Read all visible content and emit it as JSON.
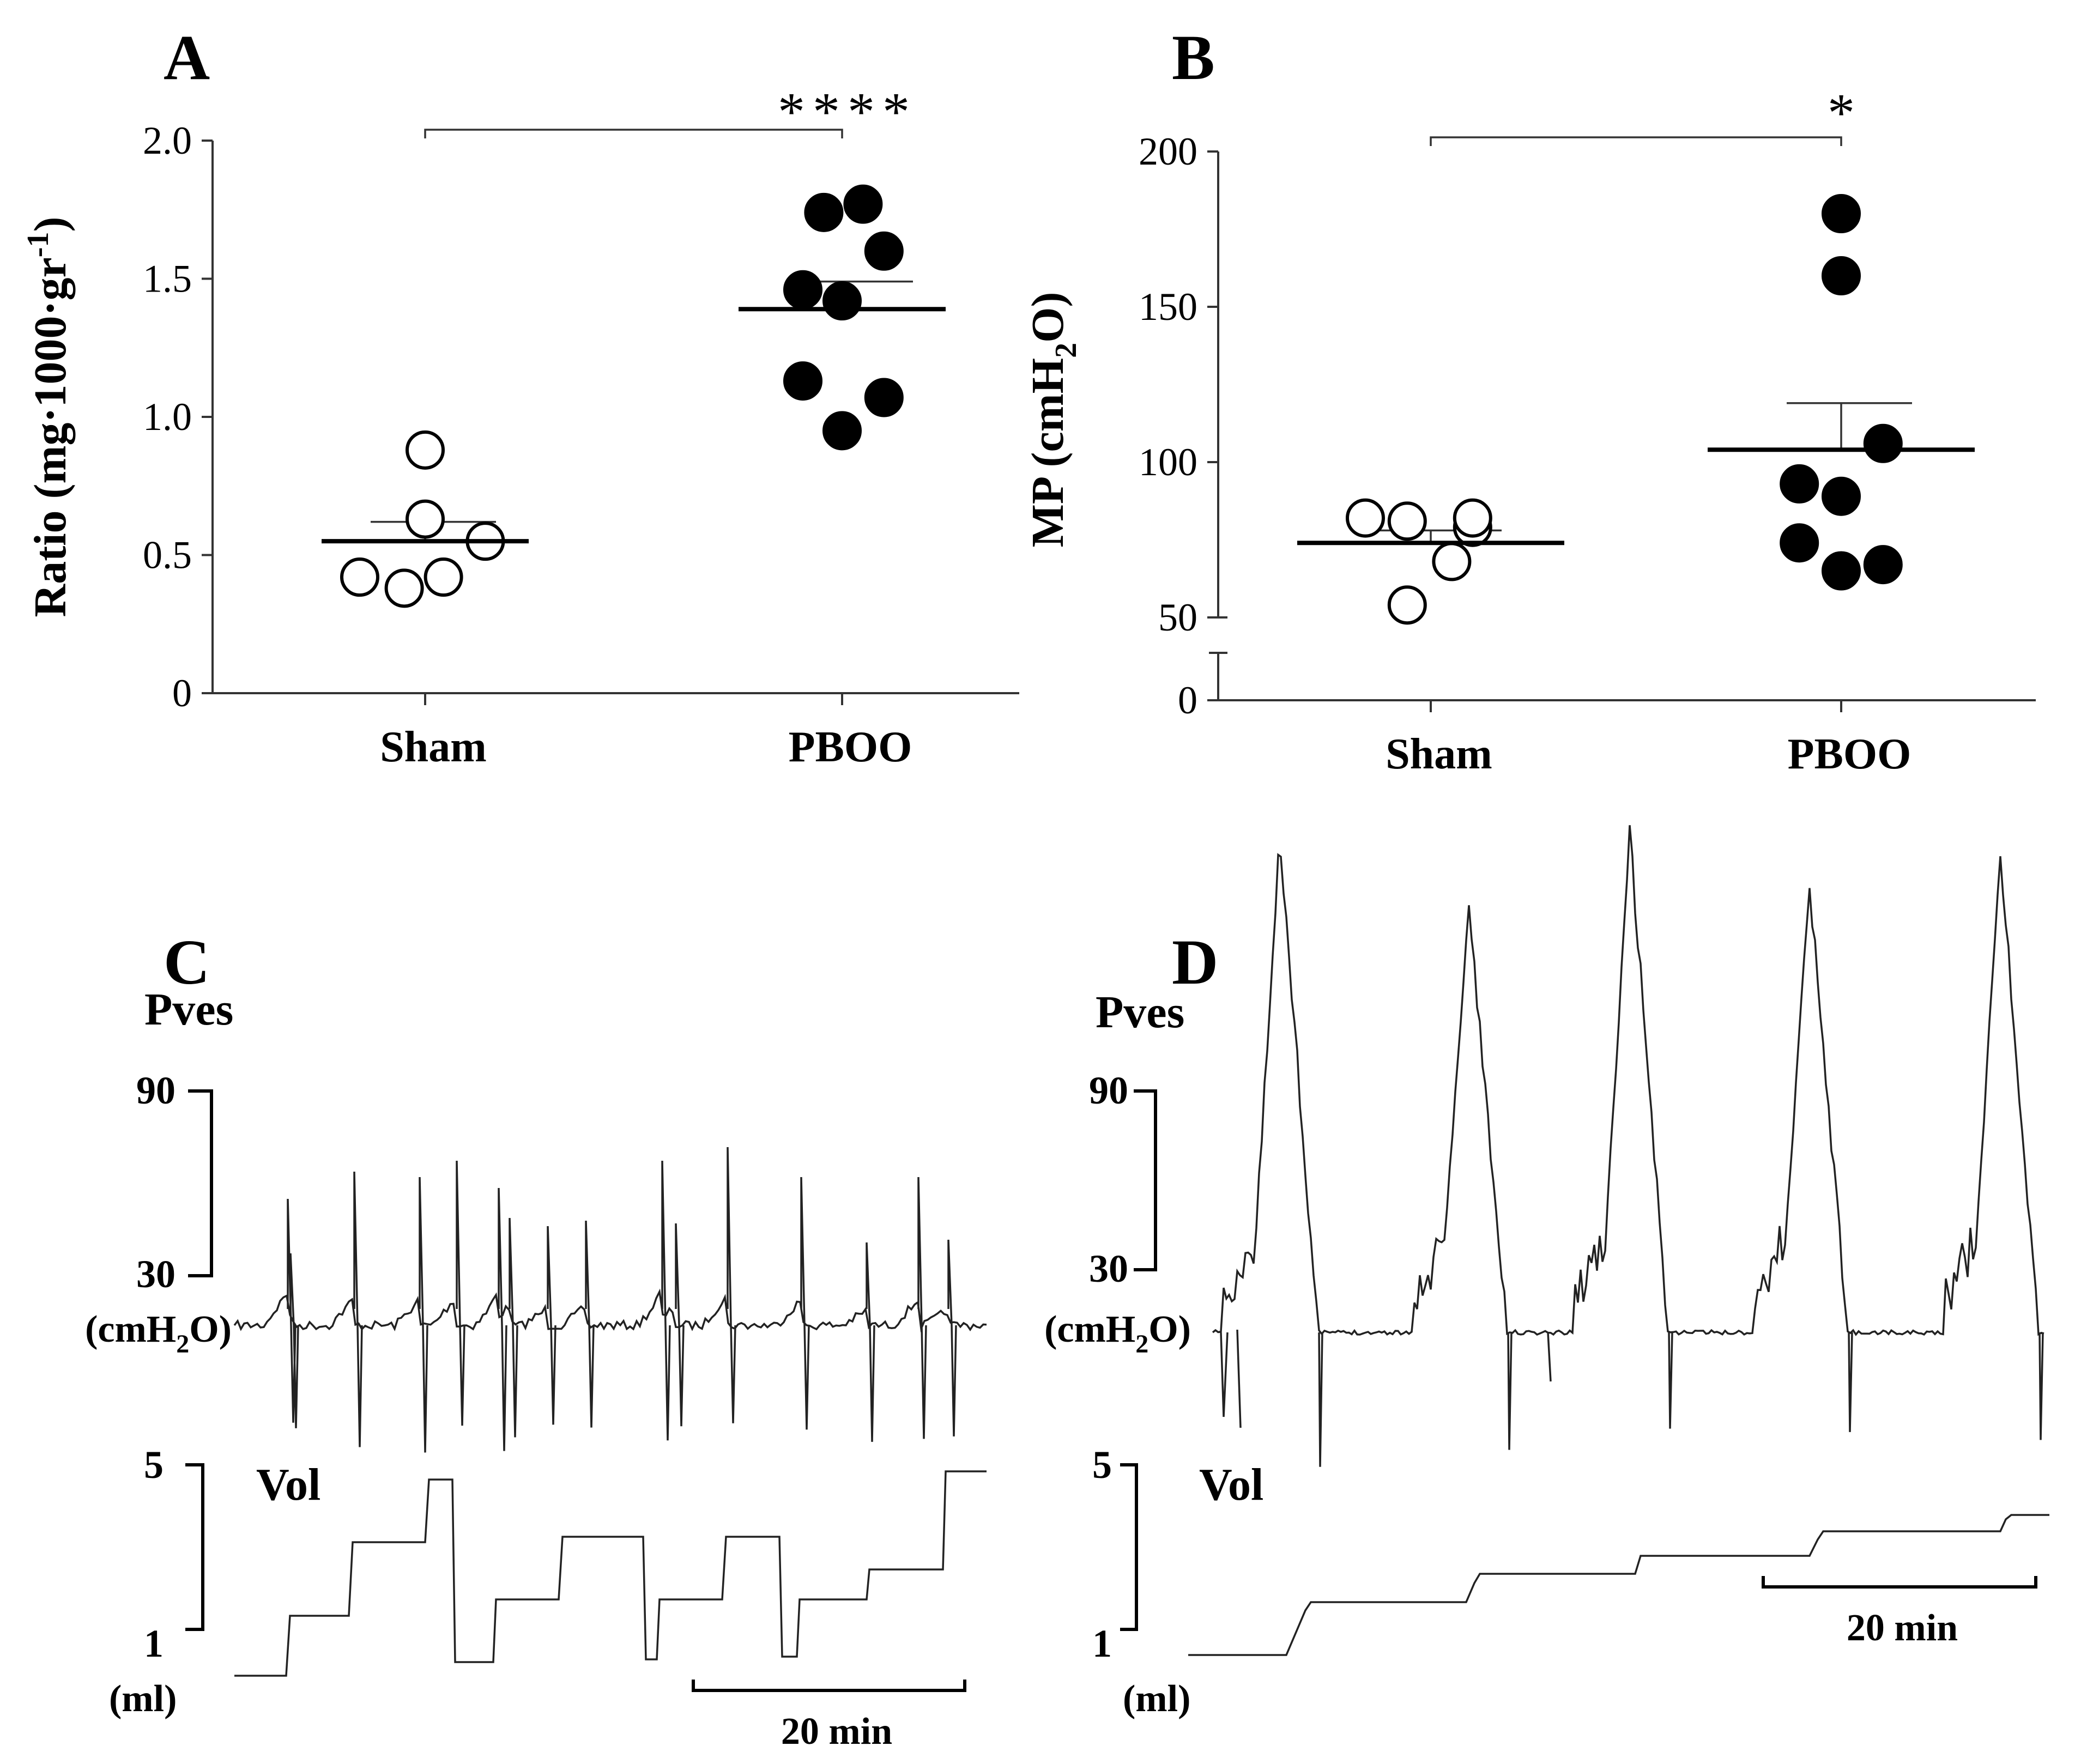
{
  "chart_data": [
    {
      "panel": "A",
      "type": "scatter",
      "categories": [
        "Sham",
        "PBOO"
      ],
      "ylabel": "Ratio (mg·1000·gr",
      "ylabel_sup": "-1",
      "ylabel_close": ")",
      "ylim": [
        0,
        2.0
      ],
      "yticks": [
        "0",
        "0.5",
        "1.0",
        "1.5",
        "2.0"
      ],
      "yticks_values": [
        0,
        0.5,
        1.0,
        1.5,
        2.0
      ],
      "significance": "****",
      "series": [
        {
          "category": "Sham",
          "marker": "open-circle",
          "points": [
            [
              -0.25,
              0.42
            ],
            [
              -0.08,
              0.38
            ],
            [
              0.07,
              0.42
            ],
            [
              0.23,
              0.55
            ],
            [
              0.0,
              0.63
            ],
            [
              0.0,
              0.88
            ]
          ],
          "mean": 0.55,
          "sem": 0.07
        },
        {
          "category": "PBOO",
          "marker": "filled-circle",
          "points": [
            [
              -0.07,
              1.74
            ],
            [
              0.08,
              1.77
            ],
            [
              0.16,
              1.6
            ],
            [
              -0.15,
              1.46
            ],
            [
              0.0,
              1.42
            ],
            [
              -0.15,
              1.13
            ],
            [
              0.16,
              1.07
            ],
            [
              0.0,
              0.95
            ]
          ],
          "mean": 1.39,
          "sem": 0.1
        }
      ]
    },
    {
      "panel": "B",
      "type": "scatter",
      "categories": [
        "Sham",
        "PBOO"
      ],
      "ylabel": "MP (cmH",
      "ylabel_sub": "2",
      "ylabel_close": "O)",
      "ylim": [
        0,
        200
      ],
      "axis_break": [
        0,
        50
      ],
      "yticks": [
        "0",
        "50",
        "100",
        "150",
        "200"
      ],
      "yticks_values": [
        0,
        50,
        100,
        150,
        200
      ],
      "significance": "*",
      "series": [
        {
          "category": "Sham",
          "marker": "open-circle",
          "points": [
            [
              -0.25,
              82
            ],
            [
              -0.09,
              81
            ],
            [
              0.08,
              68
            ],
            [
              0.16,
              79
            ],
            [
              0.16,
              82
            ],
            [
              -0.09,
              54
            ]
          ],
          "mean": 74,
          "sem": 4
        },
        {
          "category": "PBOO",
          "marker": "filled-circle",
          "points": [
            [
              0.0,
              180
            ],
            [
              0.0,
              160
            ],
            [
              0.16,
              106
            ],
            [
              -0.16,
              93
            ],
            [
              0.0,
              89
            ],
            [
              -0.16,
              74
            ],
            [
              0.0,
              65
            ],
            [
              0.16,
              67
            ]
          ],
          "mean": 104,
          "sem": 15
        }
      ]
    },
    {
      "panel": "C",
      "type": "line",
      "pressure_label": "Pves",
      "pressure_scale": [
        "90",
        "30"
      ],
      "pressure_unit": "(cmH",
      "pressure_unit_sub": "2",
      "pressure_unit_close": "O)",
      "volume_label": "Vol",
      "volume_scale": [
        "5",
        "1"
      ],
      "volume_unit": "(ml)",
      "time_bar": "20 min"
    },
    {
      "panel": "D",
      "type": "line",
      "pressure_label": "Pves",
      "pressure_scale": [
        "90",
        "30"
      ],
      "pressure_unit": "(cmH",
      "pressure_unit_sub": "2",
      "pressure_unit_close": "O)",
      "volume_label": "Vol",
      "volume_scale": [
        "5",
        "1"
      ],
      "volume_unit": "(ml)",
      "time_bar": "20 min"
    }
  ]
}
